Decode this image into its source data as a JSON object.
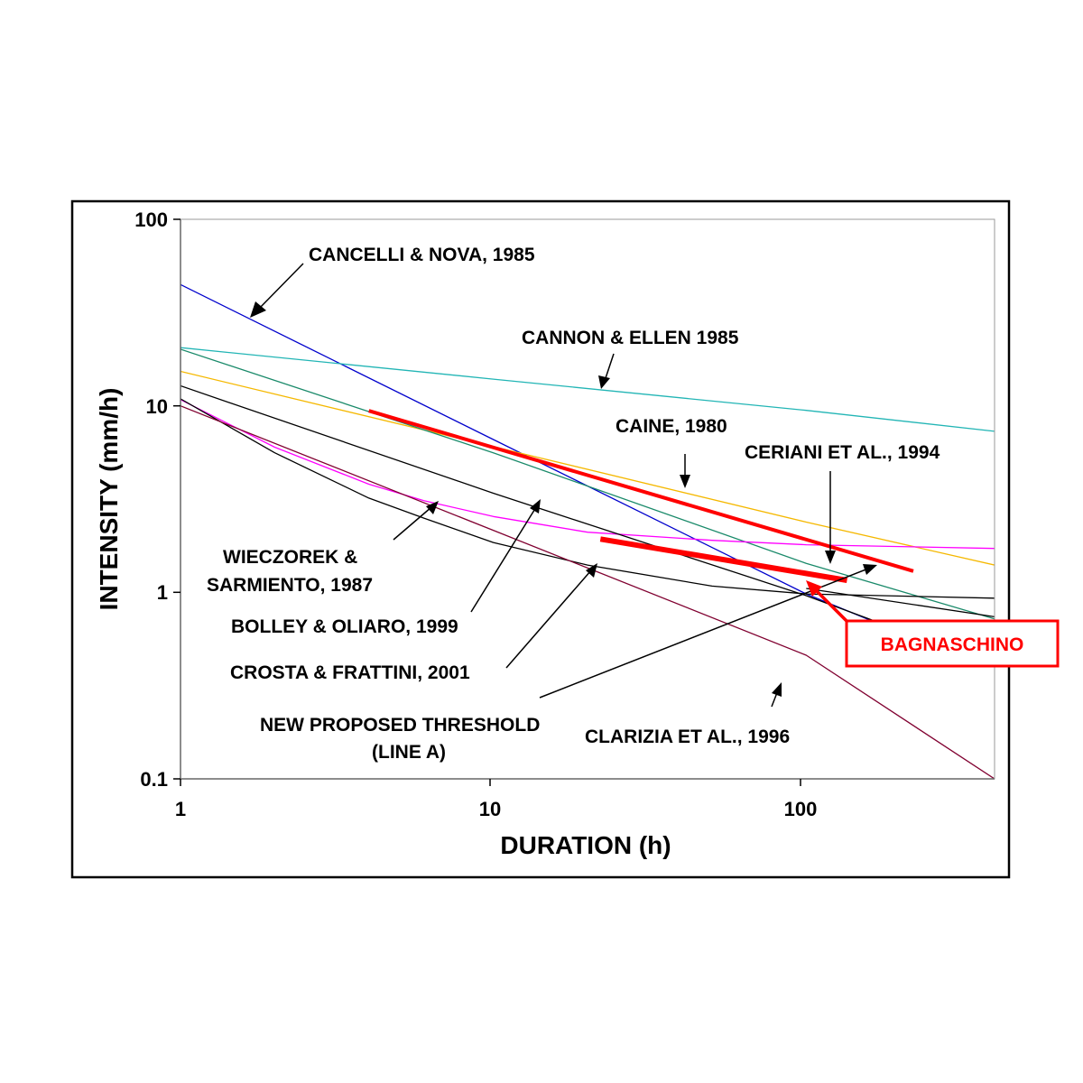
{
  "chart_data": {
    "type": "line",
    "x_scale": "log",
    "y_scale": "log",
    "xlim": [
      1,
      400
    ],
    "ylim": [
      0.1,
      100
    ],
    "xlabel": "DURATION (h)",
    "ylabel": "INTENSITY (mm/h)",
    "x_ticks": [
      "1",
      "10",
      "100"
    ],
    "y_ticks": [
      "100",
      "10",
      "1",
      "0.1"
    ],
    "grid": false,
    "series": [
      {
        "name": "CANCELLI & NOVA, 1985",
        "color": "#0000cc",
        "width": 1.3,
        "x": [
          1,
          10,
          100,
          170
        ],
        "y": [
          44.7,
          6.6,
          0.98,
          0.68
        ]
      },
      {
        "name": "CANNON & ELLEN 1985",
        "color": "#22b5b5",
        "width": 1.3,
        "x": [
          1,
          10,
          100,
          400
        ],
        "y": [
          20.5,
          13.9,
          9.45,
          7.3
        ]
      },
      {
        "name": "CAINE, 1980",
        "color": "#f5b800",
        "width": 1.3,
        "x": [
          1,
          10,
          100,
          400
        ],
        "y": [
          15.3,
          6.04,
          2.38,
          1.4
        ]
      },
      {
        "name": "CERIANI ET AL., 1994",
        "color": "#1a8a6a",
        "width": 1.3,
        "x": [
          1,
          10,
          100,
          400
        ],
        "y": [
          20.1,
          5.6,
          1.43,
          0.72
        ]
      },
      {
        "name": "WIECZOREK & SARMIENTO, 1987",
        "color": "#ff00ff",
        "width": 1.3,
        "x": [
          1,
          2,
          4,
          6,
          10,
          20,
          50,
          100,
          400
        ],
        "y": [
          10.8,
          6.0,
          3.8,
          3.1,
          2.55,
          2.1,
          1.9,
          1.8,
          1.72
        ]
      },
      {
        "name": "BOLLEY & OLIARO, 1999",
        "color": "#000000",
        "width": 1.3,
        "x": [
          1,
          10,
          100,
          170
        ],
        "y": [
          12.8,
          3.4,
          0.96,
          0.69
        ]
      },
      {
        "name": "CROSTA & FRATTINI, 2001",
        "color": "#000000",
        "width": 1.3,
        "x": [
          1,
          2,
          4,
          6,
          10,
          20,
          50,
          100,
          400
        ],
        "y": [
          10.9,
          5.6,
          3.2,
          2.5,
          1.85,
          1.4,
          1.08,
          0.98,
          0.93
        ]
      },
      {
        "name": "NEW PROPOSED THRESHOLD (LINE A)",
        "color": "#000000",
        "width": 1.3,
        "x": [
          100,
          400
        ],
        "y": [
          1.05,
          0.74
        ]
      },
      {
        "name": "CLARIZIA ET AL., 1996",
        "color": "#800030",
        "width": 1.3,
        "x": [
          1,
          10,
          100,
          400
        ],
        "y": [
          10.0,
          2.15,
          0.46,
          0.1
        ]
      },
      {
        "name": "BAGNASCHINO",
        "color": "#ff0000",
        "width": 4,
        "x": [
          4,
          220
        ],
        "y": [
          9.4,
          1.3
        ]
      },
      {
        "name": "BAGNASCHINO",
        "color": "#ff0000",
        "width": 6,
        "x": [
          22,
          135
        ],
        "y": [
          1.93,
          1.16
        ]
      }
    ],
    "annotations": [
      {
        "id": "cancelli",
        "text": "CANCELLI & NOVA, 1985"
      },
      {
        "id": "cannon",
        "text": "CANNON & ELLEN 1985"
      },
      {
        "id": "caine",
        "text": "CAINE, 1980"
      },
      {
        "id": "ceriani",
        "text": "CERIANI ET AL., 1994"
      },
      {
        "id": "wieczorek1",
        "text": "WIECZOREK &"
      },
      {
        "id": "wieczorek2",
        "text": "SARMIENTO, 1987"
      },
      {
        "id": "bolley",
        "text": "BOLLEY & OLIARO, 1999"
      },
      {
        "id": "crosta",
        "text": "CROSTA & FRATTINI, 2001"
      },
      {
        "id": "newthresh1",
        "text": "NEW PROPOSED THRESHOLD"
      },
      {
        "id": "newthresh2",
        "text": "(LINE A)"
      },
      {
        "id": "clarizia",
        "text": "CLARIZIA ET AL., 1996"
      }
    ],
    "callout": {
      "text": "BAGNASCHINO",
      "color": "#ff0000"
    }
  }
}
